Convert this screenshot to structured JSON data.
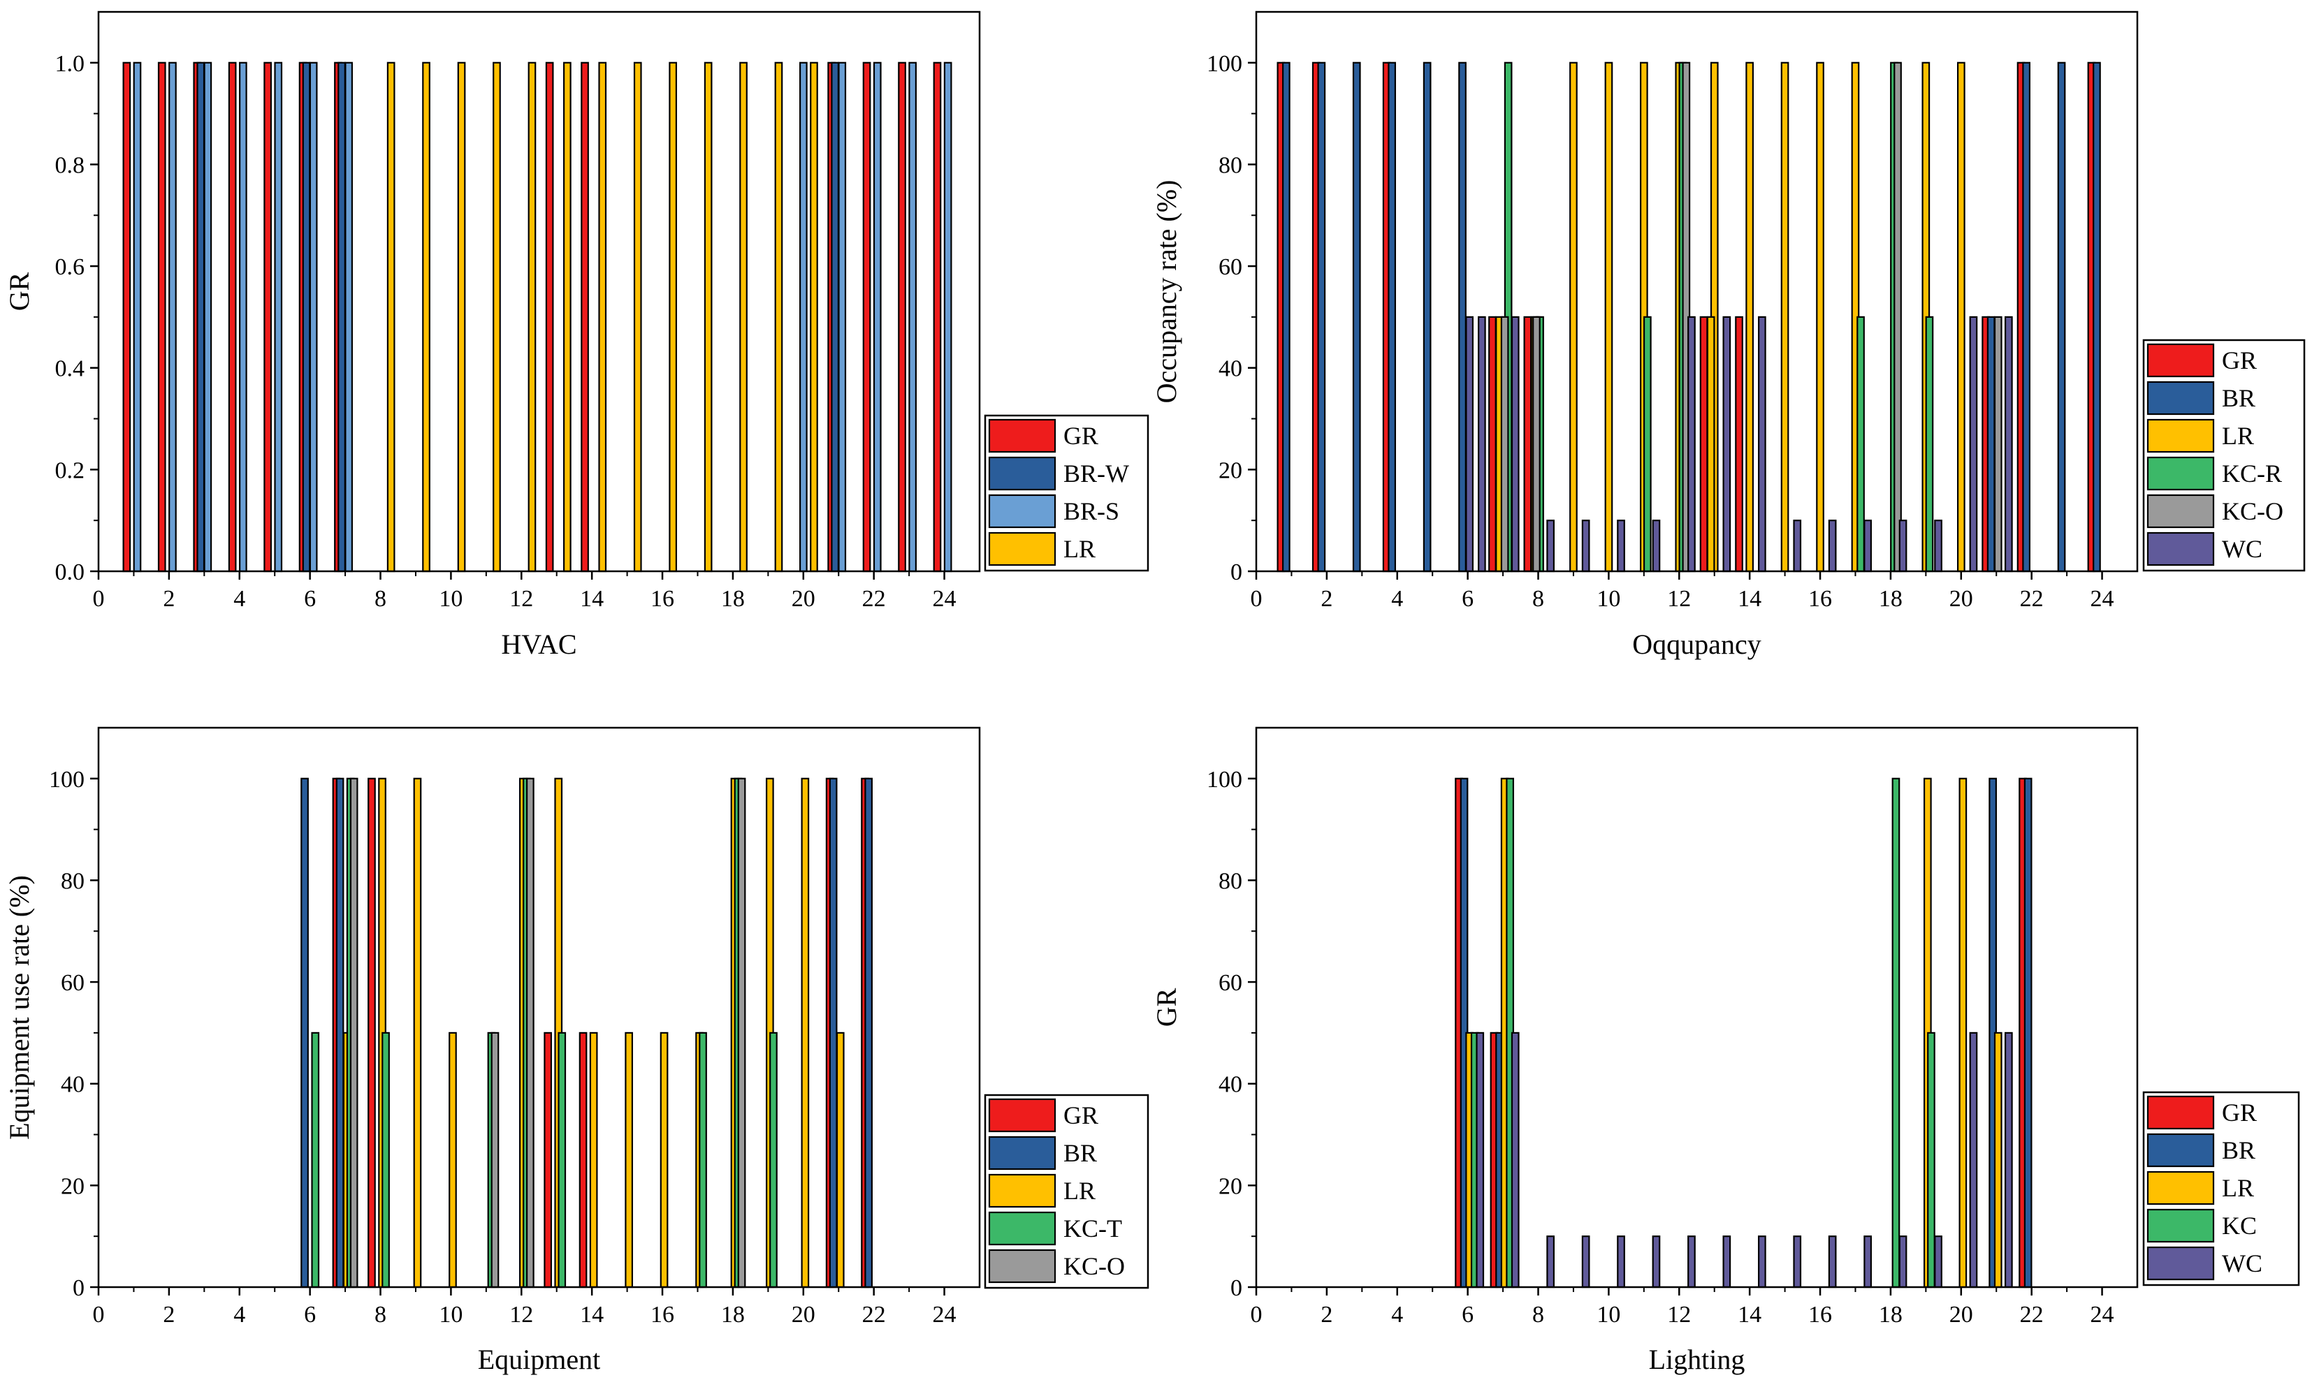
{
  "chart_data": [
    {
      "type": "bar",
      "title": "",
      "xlabel": "HVAC",
      "ylabel": "GR",
      "xlim": [
        0,
        25
      ],
      "ylim": [
        0,
        1.1
      ],
      "xticks": [
        "0",
        "2",
        "4",
        "6",
        "8",
        "10",
        "12",
        "14",
        "16",
        "18",
        "20",
        "22",
        "24"
      ],
      "yticks": [
        "0.0",
        "0.2",
        "0.4",
        "0.6",
        "0.8",
        "1.0"
      ],
      "legend_position": "right-lower",
      "series": [
        {
          "name": "GR",
          "color": "#ee1c1c",
          "bars": [
            [
              0.8,
              1
            ],
            [
              1.8,
              1
            ],
            [
              2.8,
              1
            ],
            [
              3.8,
              1
            ],
            [
              4.8,
              1
            ],
            [
              5.8,
              1
            ],
            [
              6.8,
              1
            ],
            [
              12.8,
              1
            ],
            [
              13.8,
              1
            ],
            [
              20.8,
              1
            ],
            [
              21.8,
              1
            ],
            [
              22.8,
              1
            ],
            [
              23.8,
              1
            ]
          ]
        },
        {
          "name": "BR-W",
          "color": "#2a5d9a",
          "bars": [
            [
              2.9,
              1
            ],
            [
              5.9,
              1
            ],
            [
              6.9,
              1
            ],
            [
              20.9,
              1
            ]
          ]
        },
        {
          "name": "BR-S",
          "color": "#6a9fd4",
          "bars": [
            [
              1.1,
              1
            ],
            [
              2.1,
              1
            ],
            [
              3.1,
              1
            ],
            [
              4.1,
              1
            ],
            [
              5.1,
              1
            ],
            [
              6.1,
              1
            ],
            [
              7.1,
              1
            ],
            [
              20,
              1
            ],
            [
              21.1,
              1
            ],
            [
              22.1,
              1
            ],
            [
              23.1,
              1
            ],
            [
              24.1,
              1
            ]
          ]
        },
        {
          "name": "LR",
          "color": "#ffc000",
          "bars": [
            [
              8.3,
              1
            ],
            [
              9.3,
              1
            ],
            [
              10.3,
              1
            ],
            [
              11.3,
              1
            ],
            [
              12.3,
              1
            ],
            [
              13.3,
              1
            ],
            [
              14.3,
              1
            ],
            [
              15.3,
              1
            ],
            [
              16.3,
              1
            ],
            [
              17.3,
              1
            ],
            [
              18.3,
              1
            ],
            [
              19.3,
              1
            ],
            [
              20.3,
              1
            ]
          ]
        }
      ]
    },
    {
      "type": "bar",
      "title": "",
      "xlabel": "Oqqupancy",
      "ylabel": "Occupancy rate (%)",
      "xlim": [
        0,
        25
      ],
      "ylim": [
        0,
        110
      ],
      "xticks": [
        "0",
        "2",
        "4",
        "6",
        "8",
        "10",
        "12",
        "14",
        "16",
        "18",
        "20",
        "22",
        "24"
      ],
      "yticks": [
        "0",
        "20",
        "40",
        "60",
        "80",
        "100"
      ],
      "legend_position": "right-lower",
      "series": [
        {
          "name": "GR",
          "color": "#ee1c1c",
          "bars": [
            [
              0.7,
              100
            ],
            [
              1.7,
              100
            ],
            [
              3.7,
              100
            ],
            [
              6.7,
              50
            ],
            [
              7.7,
              50
            ],
            [
              12.7,
              50
            ],
            [
              13.7,
              50
            ],
            [
              20.7,
              50
            ],
            [
              21.7,
              100
            ],
            [
              23.7,
              100
            ]
          ]
        },
        {
          "name": "BR",
          "color": "#2a5d9a",
          "bars": [
            [
              0.85,
              100
            ],
            [
              1.85,
              100
            ],
            [
              2.85,
              100
            ],
            [
              3.85,
              100
            ],
            [
              4.85,
              100
            ],
            [
              5.85,
              100
            ],
            [
              21.85,
              100
            ],
            [
              22.85,
              100
            ],
            [
              23.85,
              100
            ],
            [
              20.85,
              50
            ]
          ]
        },
        {
          "name": "LR",
          "color": "#ffc000",
          "bars": [
            [
              6.9,
              50
            ],
            [
              7.9,
              50
            ],
            [
              9,
              100
            ],
            [
              10,
              100
            ],
            [
              11,
              100
            ],
            [
              12,
              100
            ],
            [
              13,
              100
            ],
            [
              14,
              100
            ],
            [
              15,
              100
            ],
            [
              16,
              100
            ],
            [
              17,
              100
            ],
            [
              19,
              100
            ],
            [
              20,
              100
            ],
            [
              12.9,
              50
            ]
          ]
        },
        {
          "name": "KC-R",
          "color": "#3cb868",
          "bars": [
            [
              7.15,
              100
            ],
            [
              8.05,
              50
            ],
            [
              11.1,
              50
            ],
            [
              12.1,
              100
            ],
            [
              17.15,
              50
            ],
            [
              18.1,
              100
            ],
            [
              19.1,
              50
            ]
          ]
        },
        {
          "name": "KC-O",
          "color": "#9a9a9a",
          "bars": [
            [
              7.05,
              50
            ],
            [
              7.95,
              50
            ],
            [
              12.2,
              100
            ],
            [
              18.2,
              100
            ],
            [
              21.05,
              50
            ]
          ]
        },
        {
          "name": "WC",
          "color": "#605a9a",
          "bars": [
            [
              6.05,
              50
            ],
            [
              6.4,
              50
            ],
            [
              7.35,
              50
            ],
            [
              8.35,
              10
            ],
            [
              9.35,
              10
            ],
            [
              10.35,
              10
            ],
            [
              11.35,
              10
            ],
            [
              12.35,
              50
            ],
            [
              13.35,
              50
            ],
            [
              14.35,
              50
            ],
            [
              15.35,
              10
            ],
            [
              16.35,
              10
            ],
            [
              17.35,
              10
            ],
            [
              18.35,
              10
            ],
            [
              19.35,
              10
            ],
            [
              20.35,
              50
            ],
            [
              21.35,
              50
            ]
          ]
        }
      ]
    },
    {
      "type": "bar",
      "title": "",
      "xlabel": "Equipment",
      "ylabel": "Equipment use rate (%)",
      "xlim": [
        0,
        25
      ],
      "ylim": [
        0,
        110
      ],
      "xticks": [
        "0",
        "2",
        "4",
        "6",
        "8",
        "10",
        "12",
        "14",
        "16",
        "18",
        "20",
        "22",
        "24"
      ],
      "yticks": [
        "0",
        "20",
        "40",
        "60",
        "80",
        "100"
      ],
      "legend_position": "right-lower",
      "series": [
        {
          "name": "GR",
          "color": "#ee1c1c",
          "bars": [
            [
              6.75,
              100
            ],
            [
              7.75,
              100
            ],
            [
              12.75,
              50
            ],
            [
              13.75,
              50
            ],
            [
              20.75,
              100
            ],
            [
              21.75,
              100
            ]
          ]
        },
        {
          "name": "BR",
          "color": "#2a5d9a",
          "bars": [
            [
              5.85,
              100
            ],
            [
              6.85,
              100
            ],
            [
              20.85,
              100
            ],
            [
              21.85,
              100
            ]
          ]
        },
        {
          "name": "LR",
          "color": "#ffc000",
          "bars": [
            [
              7.05,
              50
            ],
            [
              8.05,
              100
            ],
            [
              9.05,
              100
            ],
            [
              10.05,
              50
            ],
            [
              12.05,
              100
            ],
            [
              13.05,
              100
            ],
            [
              14.05,
              50
            ],
            [
              15.05,
              50
            ],
            [
              16.05,
              50
            ],
            [
              17.05,
              50
            ],
            [
              18.05,
              100
            ],
            [
              19.05,
              100
            ],
            [
              20.05,
              100
            ],
            [
              21.05,
              50
            ]
          ]
        },
        {
          "name": "KC-T",
          "color": "#3cb868",
          "bars": [
            [
              6.15,
              50
            ],
            [
              7.15,
              100
            ],
            [
              8.15,
              50
            ],
            [
              11.15,
              50
            ],
            [
              12.15,
              100
            ],
            [
              13.15,
              50
            ],
            [
              17.15,
              50
            ],
            [
              18.15,
              100
            ],
            [
              19.15,
              50
            ]
          ]
        },
        {
          "name": "KC-O",
          "color": "#9a9a9a",
          "bars": [
            [
              7.25,
              100
            ],
            [
              11.25,
              50
            ],
            [
              12.25,
              100
            ],
            [
              18.25,
              100
            ]
          ]
        }
      ]
    },
    {
      "type": "bar",
      "title": "",
      "xlabel": "Lighting",
      "ylabel": "GR",
      "xlim": [
        0,
        25
      ],
      "ylim": [
        0,
        110
      ],
      "xticks": [
        "0",
        "2",
        "4",
        "6",
        "8",
        "10",
        "12",
        "14",
        "16",
        "18",
        "20",
        "22",
        "24"
      ],
      "yticks": [
        "0",
        "20",
        "40",
        "60",
        "80",
        "100"
      ],
      "legend_position": "right-lower",
      "series": [
        {
          "name": "GR",
          "color": "#ee1c1c",
          "bars": [
            [
              5.75,
              100
            ],
            [
              6.75,
              50
            ],
            [
              21.75,
              100
            ]
          ]
        },
        {
          "name": "BR",
          "color": "#2a5d9a",
          "bars": [
            [
              5.9,
              100
            ],
            [
              6.9,
              50
            ],
            [
              20.9,
              100
            ],
            [
              21.9,
              100
            ]
          ]
        },
        {
          "name": "LR",
          "color": "#ffc000",
          "bars": [
            [
              6.05,
              50
            ],
            [
              7.05,
              100
            ],
            [
              19.05,
              100
            ],
            [
              20.05,
              100
            ],
            [
              21.05,
              50
            ]
          ]
        },
        {
          "name": "KC",
          "color": "#3cb868",
          "bars": [
            [
              6.2,
              50
            ],
            [
              7.2,
              100
            ],
            [
              18.15,
              100
            ],
            [
              19.15,
              50
            ]
          ]
        },
        {
          "name": "WC",
          "color": "#605a9a",
          "bars": [
            [
              6.35,
              50
            ],
            [
              7.35,
              50
            ],
            [
              8.35,
              10
            ],
            [
              9.35,
              10
            ],
            [
              10.35,
              10
            ],
            [
              11.35,
              10
            ],
            [
              12.35,
              10
            ],
            [
              13.35,
              10
            ],
            [
              14.35,
              10
            ],
            [
              15.35,
              10
            ],
            [
              16.35,
              10
            ],
            [
              17.35,
              10
            ],
            [
              18.35,
              10
            ],
            [
              19.35,
              10
            ],
            [
              20.35,
              50
            ],
            [
              21.35,
              50
            ]
          ]
        }
      ]
    }
  ]
}
